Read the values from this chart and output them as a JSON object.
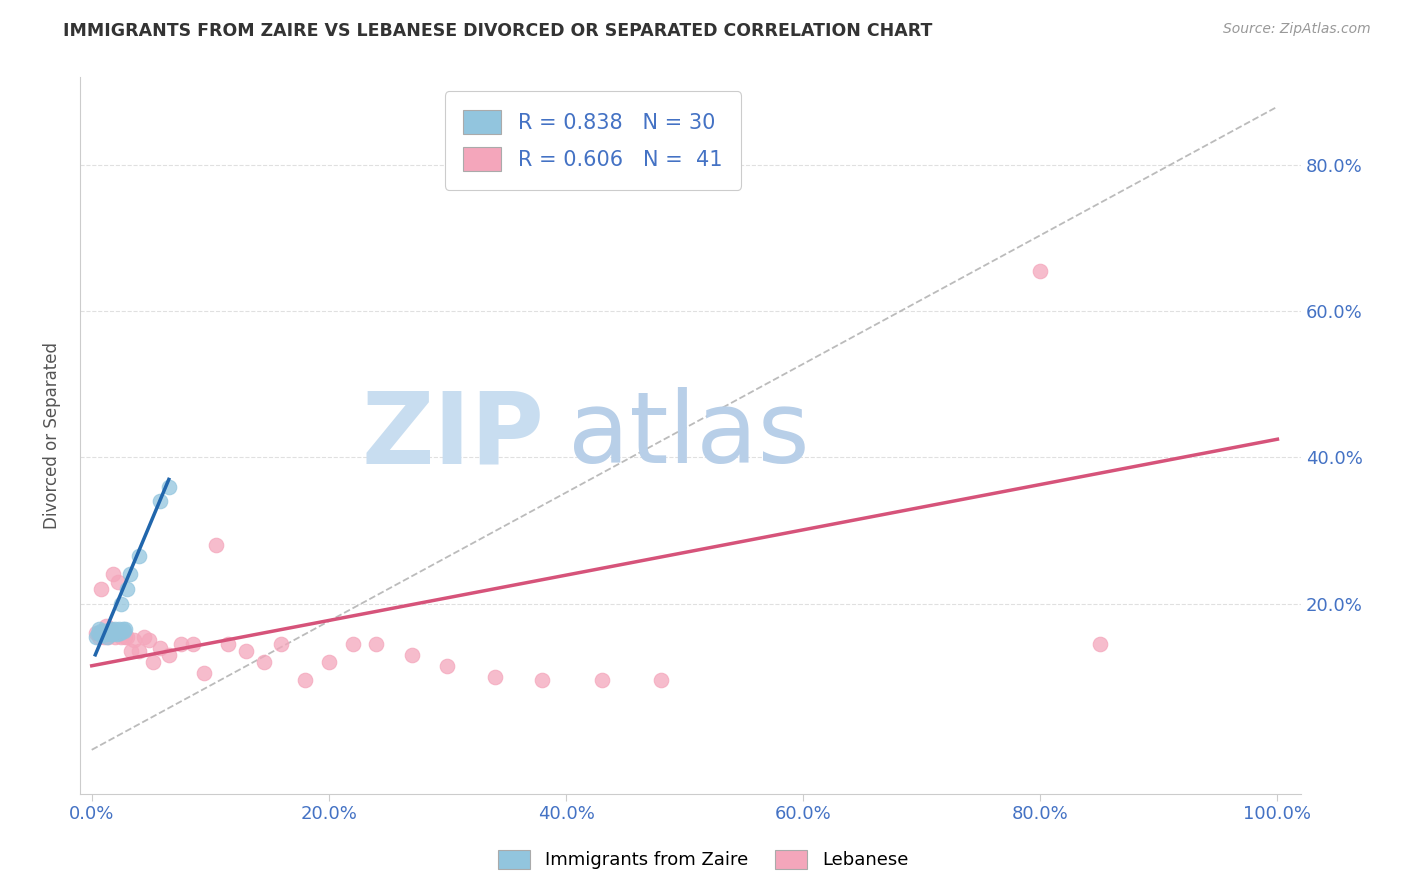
{
  "title": "IMMIGRANTS FROM ZAIRE VS LEBANESE DIVORCED OR SEPARATED CORRELATION CHART",
  "source": "Source: ZipAtlas.com",
  "xlabel_ticks": [
    "0.0%",
    "20.0%",
    "40.0%",
    "60.0%",
    "80.0%",
    "100.0%"
  ],
  "xlabel_vals": [
    0.0,
    0.2,
    0.4,
    0.6,
    0.8,
    1.0
  ],
  "ylabel": "Divorced or Separated",
  "ylabel_ticks": [
    "20.0%",
    "40.0%",
    "60.0%",
    "80.0%"
  ],
  "ylabel_vals": [
    0.2,
    0.4,
    0.6,
    0.8
  ],
  "xlim": [
    -0.01,
    1.02
  ],
  "ylim": [
    -0.06,
    0.92
  ],
  "legend_blue_r": "0.838",
  "legend_blue_n": "30",
  "legend_pink_r": "0.606",
  "legend_pink_n": "41",
  "legend_label_blue": "Immigrants from Zaire",
  "legend_label_pink": "Lebanese",
  "blue_color": "#92c5de",
  "pink_color": "#f4a6bb",
  "blue_scatter_edge": "#92c5de",
  "pink_scatter_edge": "#f4a6bb",
  "blue_line_color": "#2166ac",
  "pink_line_color": "#d6537a",
  "dashed_line_color": "#b0b0b0",
  "blue_scatter_x": [
    0.004,
    0.005,
    0.006,
    0.007,
    0.008,
    0.009,
    0.01,
    0.011,
    0.012,
    0.013,
    0.014,
    0.015,
    0.016,
    0.017,
    0.018,
    0.019,
    0.02,
    0.021,
    0.022,
    0.023,
    0.024,
    0.025,
    0.026,
    0.027,
    0.028,
    0.03,
    0.032,
    0.04,
    0.058,
    0.065
  ],
  "blue_scatter_y": [
    0.155,
    0.16,
    0.165,
    0.158,
    0.162,
    0.157,
    0.16,
    0.163,
    0.158,
    0.155,
    0.16,
    0.162,
    0.165,
    0.158,
    0.16,
    0.163,
    0.165,
    0.158,
    0.162,
    0.165,
    0.16,
    0.2,
    0.165,
    0.162,
    0.165,
    0.22,
    0.24,
    0.265,
    0.34,
    0.36
  ],
  "pink_scatter_x": [
    0.004,
    0.006,
    0.008,
    0.01,
    0.012,
    0.014,
    0.016,
    0.018,
    0.02,
    0.022,
    0.025,
    0.028,
    0.03,
    0.033,
    0.036,
    0.04,
    0.044,
    0.048,
    0.052,
    0.058,
    0.065,
    0.075,
    0.085,
    0.095,
    0.105,
    0.115,
    0.13,
    0.145,
    0.16,
    0.18,
    0.2,
    0.22,
    0.24,
    0.27,
    0.3,
    0.34,
    0.38,
    0.43,
    0.48,
    0.8,
    0.85
  ],
  "pink_scatter_y": [
    0.16,
    0.155,
    0.22,
    0.155,
    0.17,
    0.155,
    0.165,
    0.24,
    0.155,
    0.23,
    0.155,
    0.155,
    0.155,
    0.135,
    0.15,
    0.135,
    0.155,
    0.15,
    0.12,
    0.14,
    0.13,
    0.145,
    0.145,
    0.105,
    0.28,
    0.145,
    0.135,
    0.12,
    0.145,
    0.095,
    0.12,
    0.145,
    0.145,
    0.13,
    0.115,
    0.1,
    0.095,
    0.095,
    0.095,
    0.655,
    0.145
  ],
  "blue_trend_x": [
    0.003,
    0.065
  ],
  "blue_trend_y": [
    0.13,
    0.37
  ],
  "pink_trend_x": [
    0.0,
    1.0
  ],
  "pink_trend_y": [
    0.115,
    0.425
  ],
  "diag_line_x": [
    0.0,
    1.0
  ],
  "diag_line_y": [
    0.0,
    0.88
  ],
  "background_color": "#ffffff",
  "grid_color": "#e0e0e0",
  "title_color": "#333333",
  "axis_tick_color": "#4472c4",
  "ylabel_color": "#555555"
}
